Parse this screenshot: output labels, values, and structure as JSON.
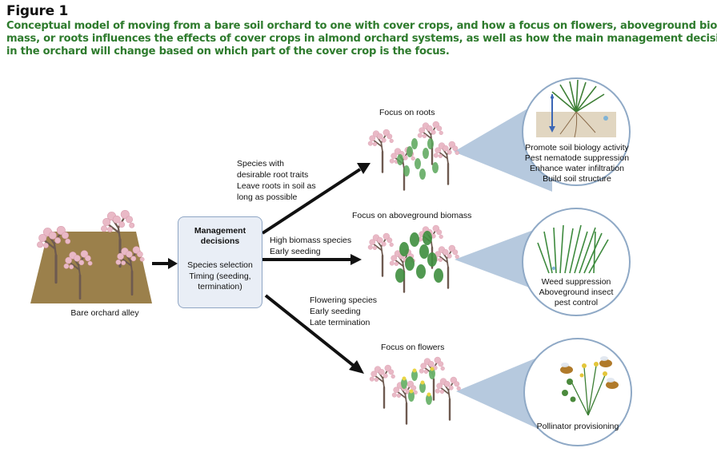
{
  "figure": {
    "label": "Figure 1",
    "caption_lines": [
      "Conceptual model of moving from a bare soil orchard to one with cover crops, and how a focus on flowers, aboveground bio-",
      "mass, or roots influences the effects of cover crops in almond orchard systems, as well as how the main management decisions",
      "in the orchard will change based on which part of the cover crop is the focus."
    ]
  },
  "bare": {
    "label": "Bare orchard alley"
  },
  "management": {
    "title_lines": [
      "Management",
      "decisions"
    ],
    "items": [
      "Species selection",
      "Timing (seeding,",
      "termination)"
    ]
  },
  "paths": {
    "roots": {
      "decisions": [
        "Species with",
        "desirable root traits",
        "Leave roots in soil as",
        "long as possible"
      ],
      "focus": "Focus on roots",
      "effects": [
        "Promote soil biology activity",
        "Pest nematode suppression",
        "Enhance water infiltration",
        "Build soil structure"
      ]
    },
    "biomass": {
      "decisions": [
        "High biomass species",
        "Early seeding"
      ],
      "focus": "Focus on aboveground biomass",
      "effects": [
        "Weed suppression",
        "Aboveground insect",
        "pest control"
      ]
    },
    "flowers": {
      "decisions": [
        "Flowering species",
        "Early seeding",
        "Late termination"
      ],
      "focus": "Focus on flowers",
      "effects": [
        "Pollinator provisioning"
      ]
    }
  },
  "colors": {
    "caption": "#2e7b2d",
    "soil": "#8a6a2c",
    "blossom": "#e9b9c6",
    "trunk": "#6e5a50",
    "box_fill": "#e9eef6",
    "box_border": "#8fa6c4",
    "cone": "#a9c0d8",
    "circle_border": "#8fa9c6"
  }
}
